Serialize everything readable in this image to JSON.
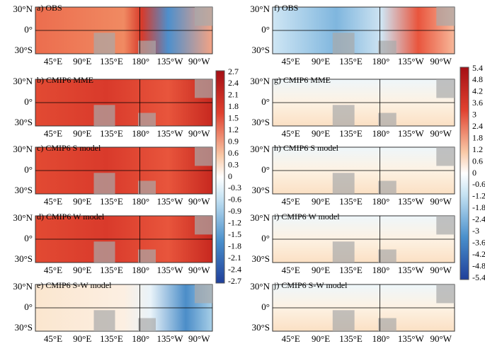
{
  "panels_left": [
    {
      "label": "a) OBS"
    },
    {
      "label": "b) CMIP6 MME"
    },
    {
      "label": "c) CMIP6  S model"
    },
    {
      "label": "d) CMIP6  W model"
    },
    {
      "label": "e) CMIP6  S-W model"
    }
  ],
  "panels_right": [
    {
      "label": "f) OBS"
    },
    {
      "label": "g) CMIP6 MME"
    },
    {
      "label": "h) CMIP6  S model"
    },
    {
      "label": "i) CMIP6  W model"
    },
    {
      "label": "j) CMIP6  S-W model"
    }
  ],
  "lat_ticks": [
    "30°N",
    "0°",
    "30°S"
  ],
  "lon_ticks": [
    "45°E",
    "90°E",
    "135°E",
    "180°",
    "135°W",
    "90°W"
  ],
  "colorbar_left": [
    "2.7",
    "2.4",
    "2.1",
    "1.8",
    "1.5",
    "1.2",
    "0.9",
    "0.6",
    "0.3",
    "0",
    "-0.3",
    "-0.6",
    "-0.9",
    "-1.2",
    "-1.5",
    "-1.8",
    "-2.1",
    "-2.4",
    "-2.7"
  ],
  "colorbar_right": [
    "5.4",
    "4.8",
    "4.2",
    "3.6",
    "3",
    "2.4",
    "1.8",
    "1.2",
    "0.6",
    "0",
    "-0.6",
    "-1.2",
    "-1.8",
    "-2.4",
    "-3",
    "-3.6",
    "-4.2",
    "-4.8",
    "-5.4"
  ]
}
